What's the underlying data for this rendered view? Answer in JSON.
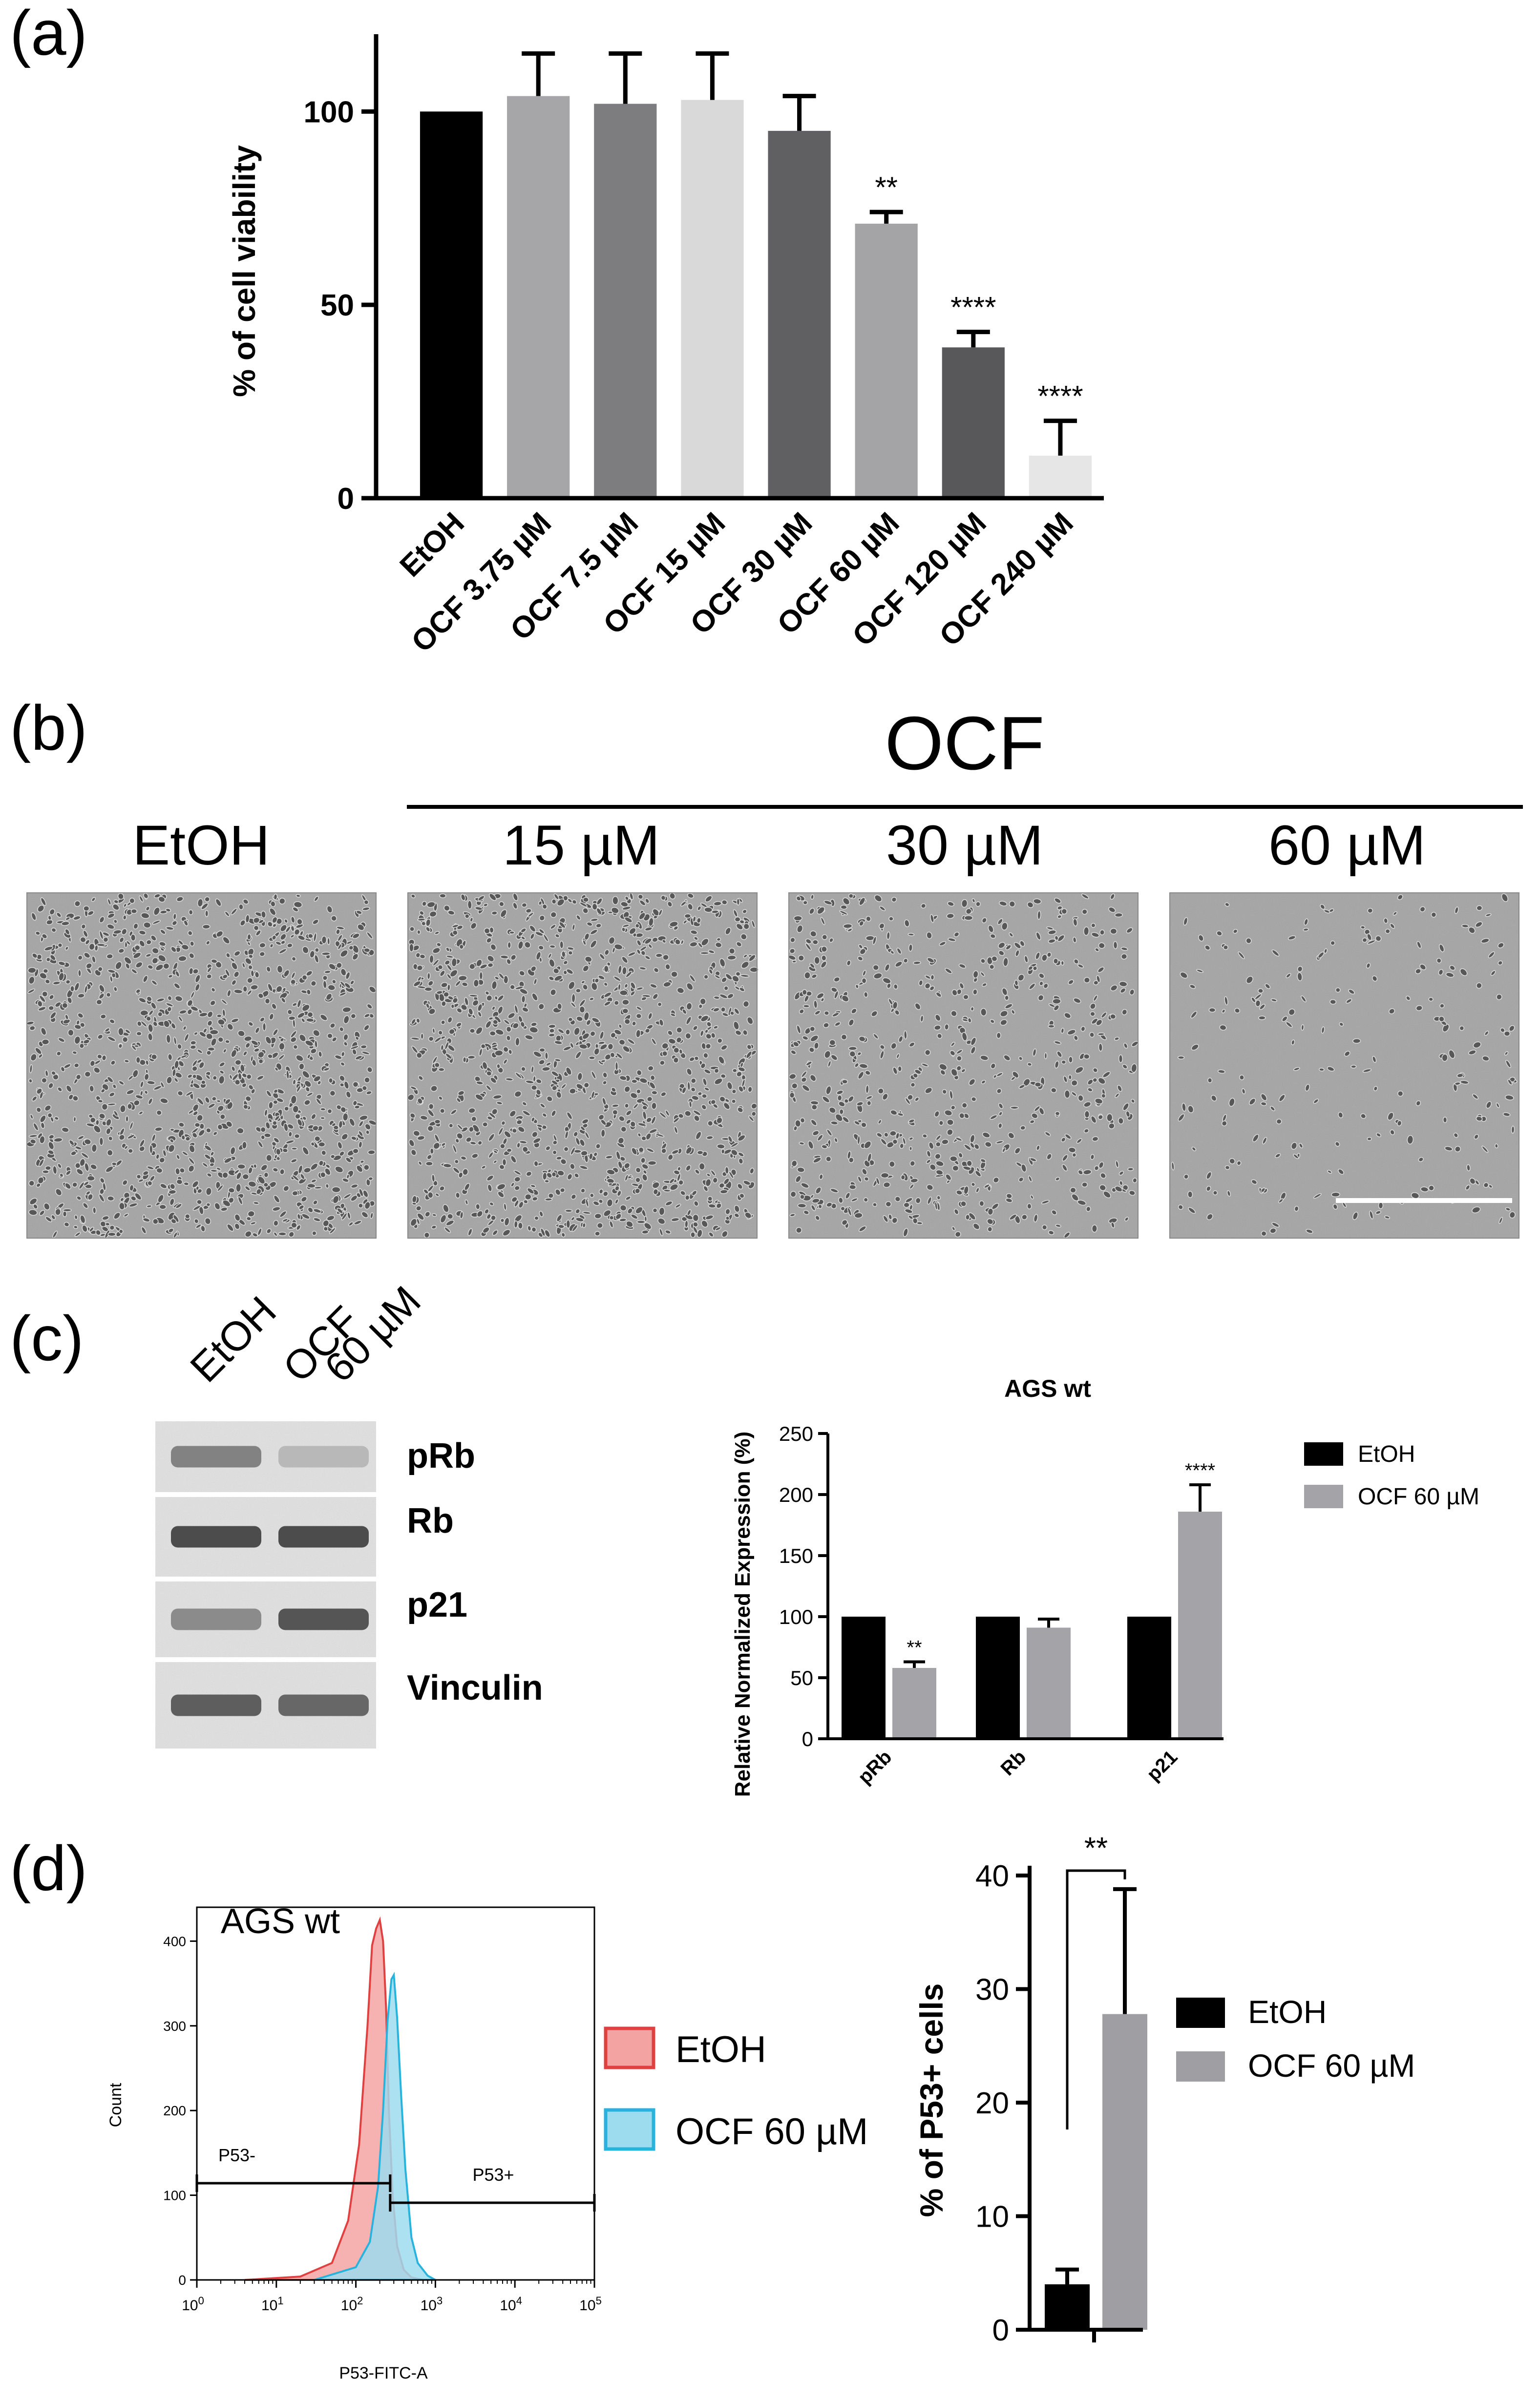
{
  "panels": {
    "a": "(a)",
    "b": "(b)",
    "c": "(c)",
    "d": "(d)"
  },
  "chart_data": [
    {
      "id": "a",
      "type": "bar",
      "title": "",
      "xlabel": "",
      "ylabel": "% of cell viability",
      "ylim": [
        0,
        120
      ],
      "yticks": [
        0,
        50,
        100
      ],
      "grid": false,
      "categories": [
        "EtOH",
        "OCF 3.75 µM",
        "OCF 7.5 µM",
        "OCF 15 µM",
        "OCF 30 µM",
        "OCF 60 µM",
        "OCF 120 µM",
        "OCF 240 µM"
      ],
      "values": [
        100,
        104,
        102,
        103,
        95,
        71,
        39,
        11
      ],
      "errors": [
        0,
        11,
        13,
        12,
        9,
        3,
        4,
        9
      ],
      "colors": [
        "#000000",
        "#a6a6a9",
        "#7d7d7f",
        "#d9d9d9",
        "#606062",
        "#a4a4a7",
        "#58585a",
        "#e6e6e6"
      ],
      "annotations": [
        "",
        "",
        "",
        "",
        "",
        "**",
        "****",
        "****"
      ]
    },
    {
      "id": "c",
      "type": "bar",
      "title": "AGS wt",
      "xlabel": "",
      "ylabel": "Relative Normalized Expression (%)",
      "ylim": [
        0,
        250
      ],
      "yticks": [
        0,
        50,
        100,
        150,
        200,
        250
      ],
      "grid": false,
      "legend_position": "right",
      "categories": [
        "pRb",
        "Rb",
        "p21"
      ],
      "series": [
        {
          "name": "EtOH",
          "color": "#000000",
          "values": [
            100,
            100,
            100
          ],
          "errors": [
            0,
            0,
            0
          ],
          "annotations": [
            "",
            "",
            ""
          ]
        },
        {
          "name": "OCF 60 µM",
          "color": "#a4a4a8",
          "values": [
            58,
            91,
            186
          ],
          "errors": [
            5,
            7,
            22
          ],
          "annotations": [
            "**",
            "",
            "****"
          ]
        }
      ]
    },
    {
      "id": "d-histogram",
      "type": "area",
      "title": "",
      "label": "AGS wt",
      "xlabel": "P53-FITC-A",
      "ylabel": "Count",
      "x_scale": "log",
      "xlim": [
        1,
        100000
      ],
      "ylim": [
        0,
        440
      ],
      "xticks": [
        1,
        10,
        100,
        1000,
        10000,
        100000
      ],
      "xtick_exponents": [
        "0",
        "1",
        "2",
        "3",
        "4",
        "5"
      ],
      "yticks": [
        0,
        100,
        200,
        300,
        400
      ],
      "legend_position": "right",
      "gates": [
        {
          "label": "P53-",
          "range": [
            1,
            270
          ]
        },
        {
          "label": "P53+",
          "range": [
            270,
            100000
          ]
        }
      ],
      "series": [
        {
          "name": "EtOH",
          "fill": "#f4a3a3",
          "stroke": "#e04040",
          "x": [
            4,
            20,
            50,
            80,
            110,
            140,
            160,
            180,
            200,
            220,
            240,
            260,
            290,
            330,
            400,
            500,
            700
          ],
          "y": [
            0,
            4,
            20,
            70,
            160,
            300,
            395,
            415,
            425,
            400,
            320,
            200,
            100,
            40,
            12,
            3,
            0
          ]
        },
        {
          "name": "OCF 60 µM",
          "fill": "#9ddcee",
          "stroke": "#27b3db",
          "x": [
            30,
            100,
            150,
            190,
            220,
            250,
            280,
            300,
            330,
            370,
            420,
            500,
            600,
            800,
            1000
          ],
          "y": [
            0,
            15,
            45,
            110,
            200,
            305,
            355,
            360,
            310,
            220,
            130,
            50,
            20,
            5,
            0
          ]
        }
      ]
    },
    {
      "id": "d-bar",
      "type": "bar",
      "title": "",
      "xlabel": "",
      "ylabel": "% of P53+ cells",
      "ylim": [
        0,
        40
      ],
      "yticks": [
        0,
        10,
        20,
        30,
        40
      ],
      "grid": false,
      "legend_position": "right",
      "categories": [
        "EtOH",
        "OCF 60 µM"
      ],
      "values": [
        4,
        27.8
      ],
      "errors": [
        1.3,
        11
      ],
      "colors": [
        "#000000",
        "#9f9fa3"
      ],
      "significance": "**"
    }
  ],
  "micrographs": {
    "group_label": "OCF",
    "items": [
      {
        "label": "EtOH",
        "density": 0.8
      },
      {
        "label": "15 µM",
        "density": 0.78
      },
      {
        "label": "30 µM",
        "density": 0.45
      },
      {
        "label": "60 µM",
        "density": 0.15
      }
    ]
  },
  "western_blot": {
    "lanes": [
      "EtOH",
      "OCF\n60 µM"
    ],
    "lane_line1": "OCF",
    "lane_line2": "60 µM",
    "proteins": [
      "pRb",
      "Rb",
      "p21",
      "Vinculin"
    ],
    "band_intensity": [
      [
        0.55,
        0.25
      ],
      [
        0.85,
        0.85
      ],
      [
        0.5,
        0.8
      ],
      [
        0.75,
        0.7
      ]
    ]
  }
}
